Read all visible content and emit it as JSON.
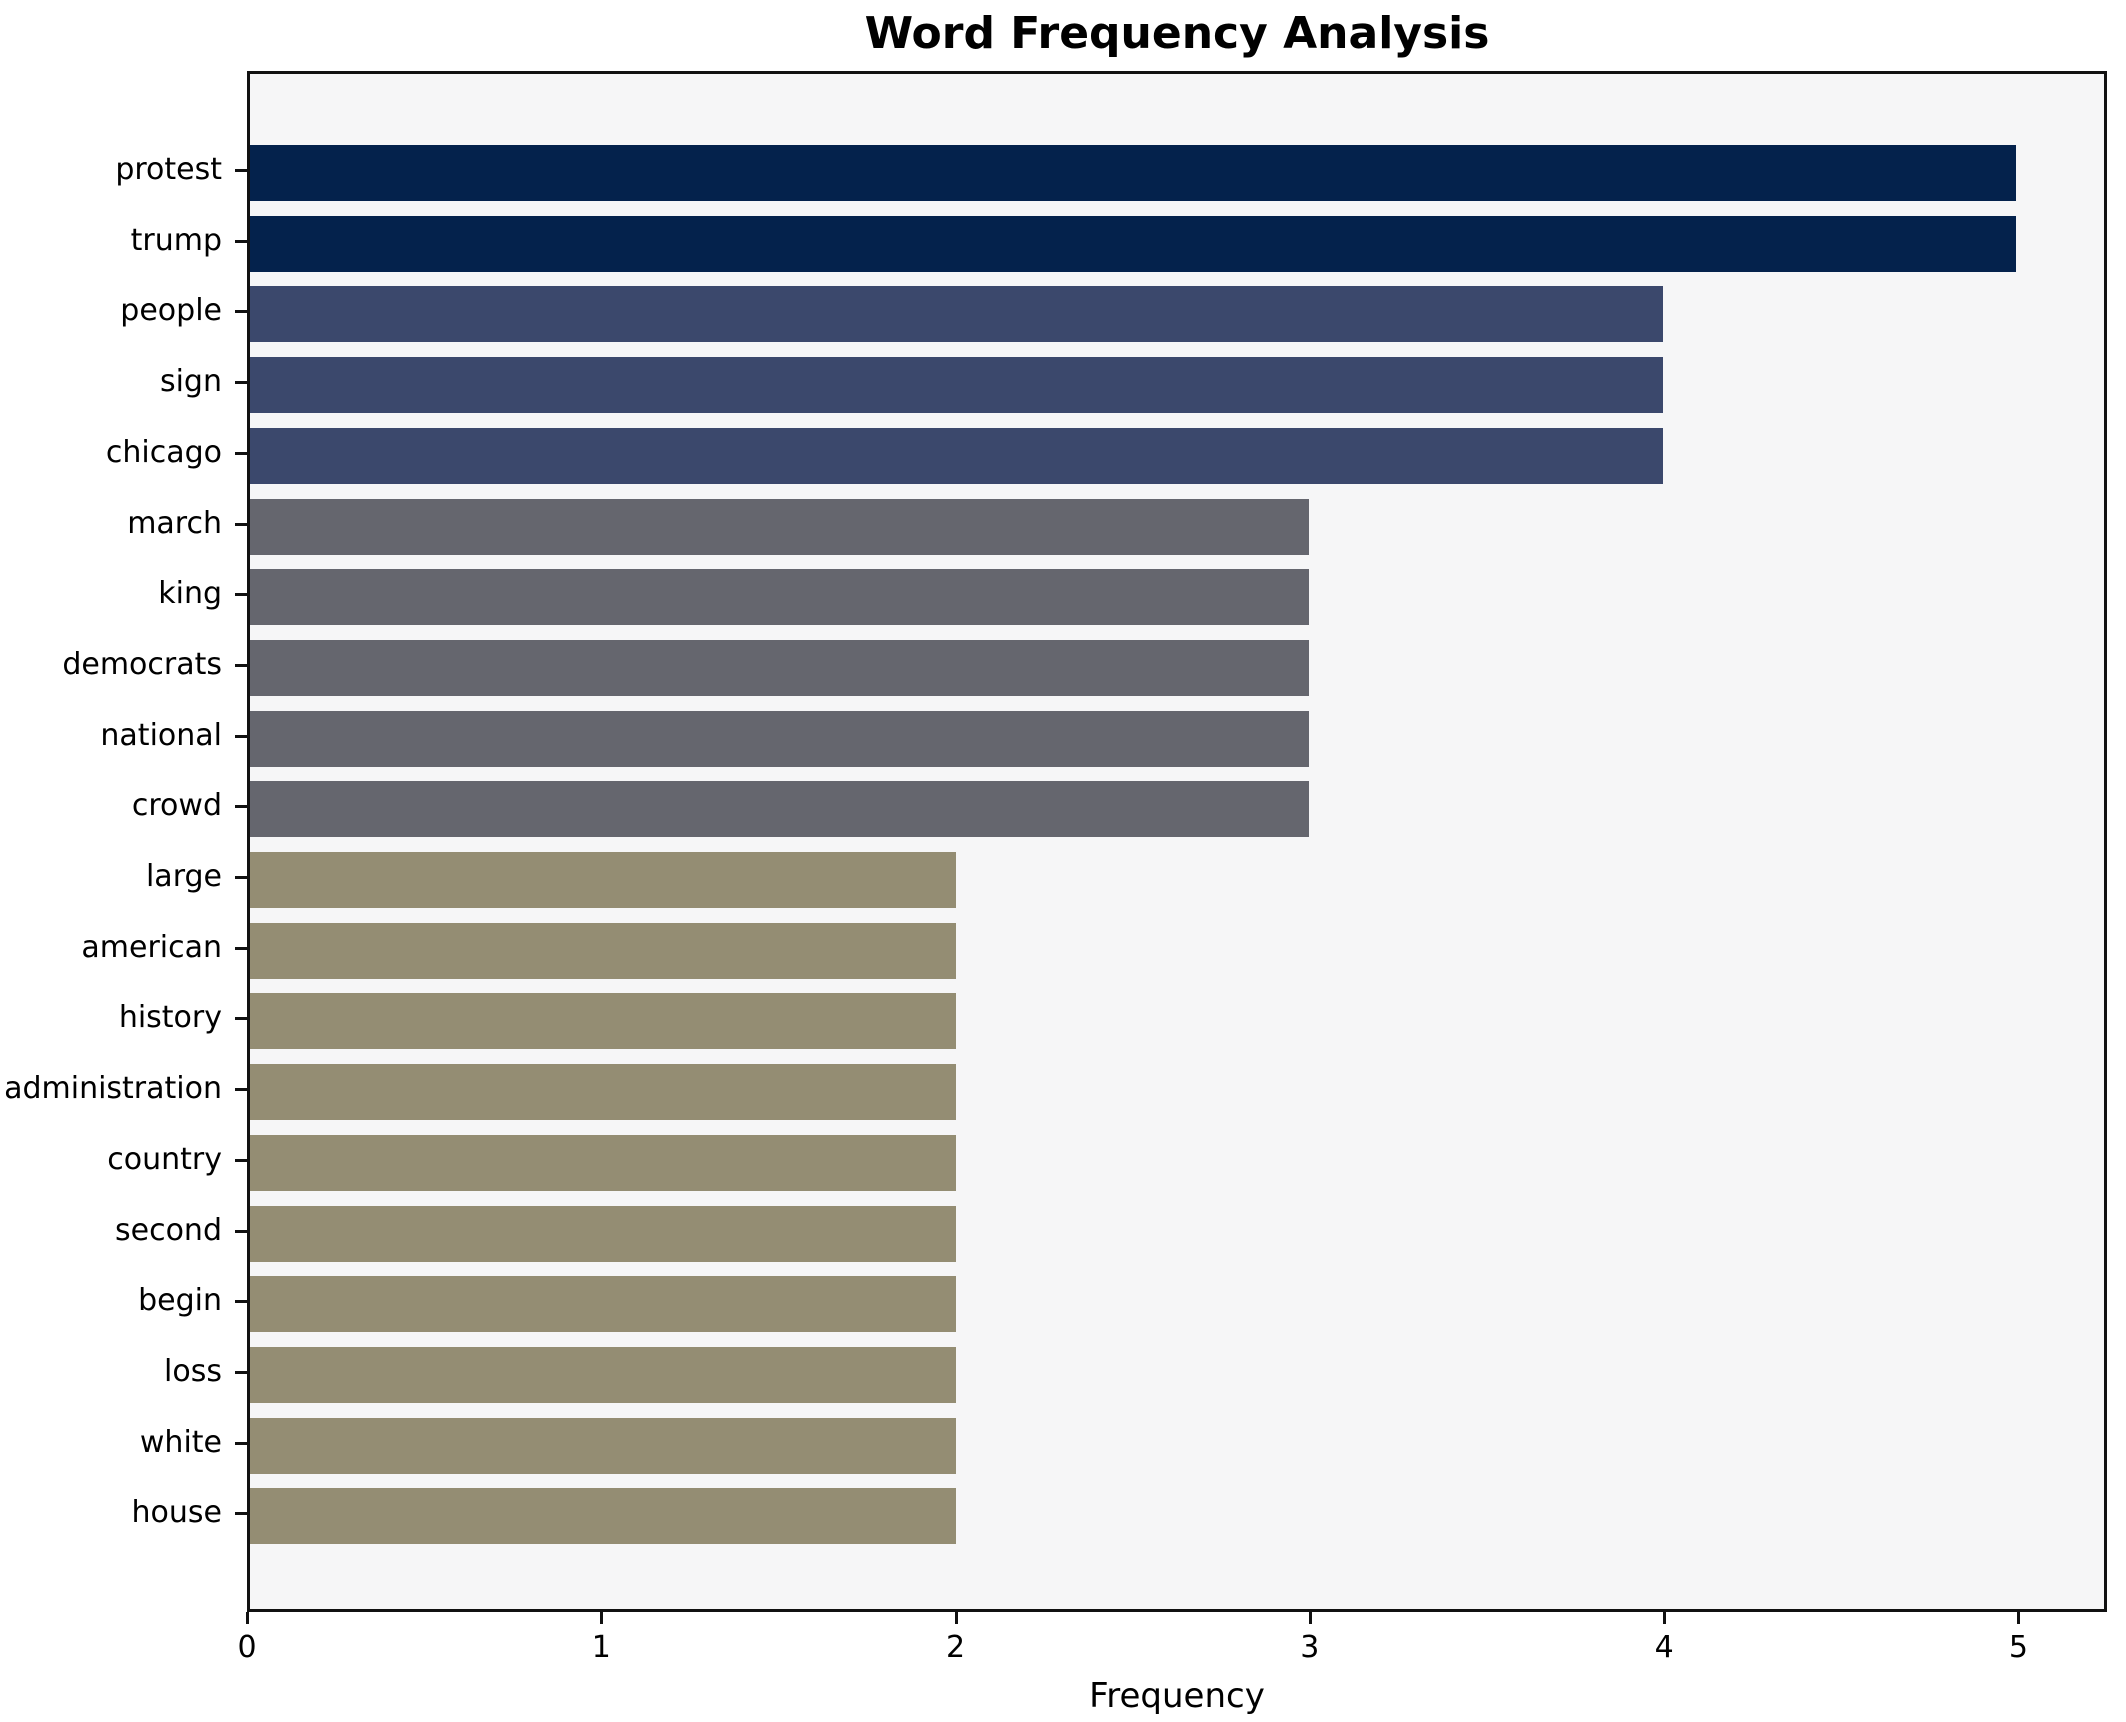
{
  "chart_data": {
    "type": "bar",
    "orientation": "horizontal",
    "title": "Word Frequency Analysis",
    "xlabel": "Frequency",
    "ylabel": "",
    "categories": [
      "protest",
      "trump",
      "people",
      "sign",
      "chicago",
      "march",
      "king",
      "democrats",
      "national",
      "crowd",
      "large",
      "american",
      "history",
      "administration",
      "country",
      "second",
      "begin",
      "loss",
      "white",
      "house"
    ],
    "values": [
      5,
      5,
      4,
      4,
      4,
      3,
      3,
      3,
      3,
      3,
      2,
      2,
      2,
      2,
      2,
      2,
      2,
      2,
      2,
      2
    ],
    "bar_colors": [
      "#04224c",
      "#04224c",
      "#3b486c",
      "#3b486c",
      "#3b486c",
      "#65666e",
      "#65666e",
      "#65666e",
      "#65666e",
      "#65666e",
      "#948d73",
      "#948d73",
      "#948d73",
      "#948d73",
      "#948d73",
      "#948d73",
      "#948d73",
      "#948d73",
      "#948d73",
      "#948d73"
    ],
    "xticks": [
      "0",
      "1",
      "2",
      "3",
      "4",
      "5"
    ],
    "xtick_values": [
      0,
      1,
      2,
      3,
      4,
      5
    ],
    "xlim": [
      0,
      5.25
    ],
    "grid": false,
    "legend_position": "none",
    "colors": {
      "value_5": "#04224c",
      "value_4": "#3b486c",
      "value_3": "#65666e",
      "value_2": "#948d73",
      "plot_background": "#f6f6f7",
      "figure_background": "#ffffff",
      "axis_line": "#111111",
      "text": "#000000"
    }
  }
}
